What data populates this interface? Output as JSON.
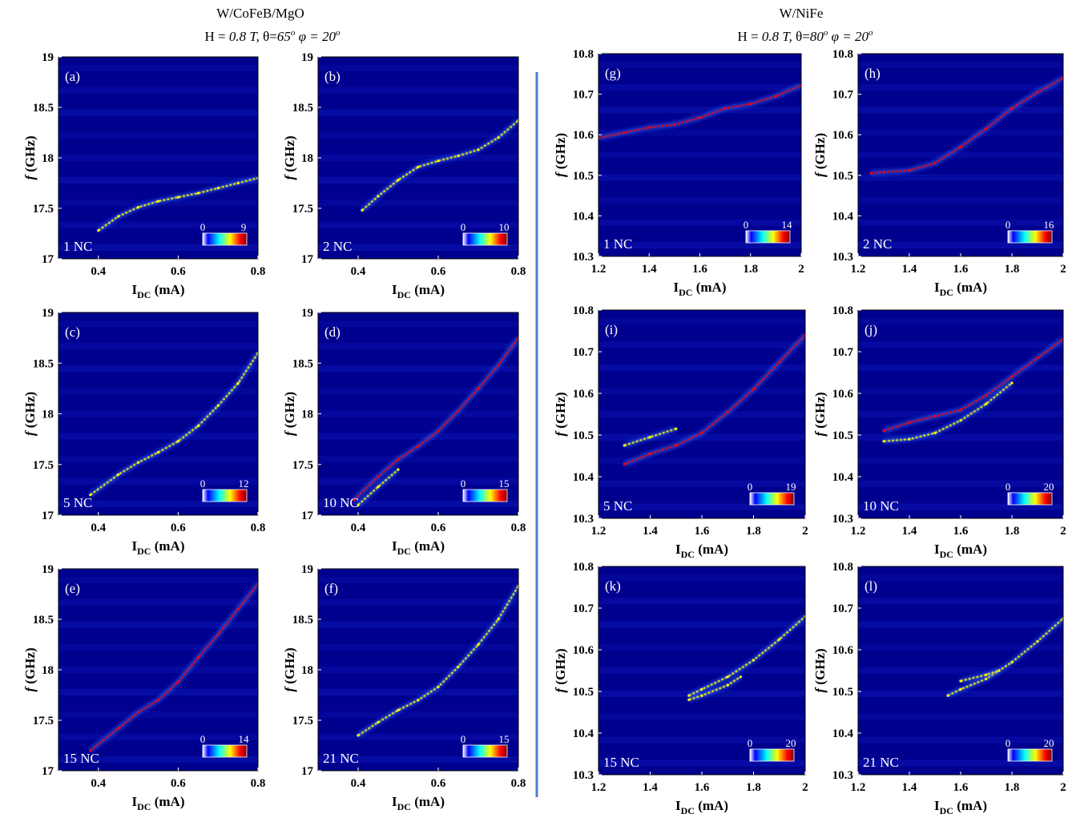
{
  "header": {
    "left_title": "W/CoFeB/MgO",
    "left_params": [
      "H = ",
      "0.8 T,",
      "  θ=",
      "65",
      "o",
      " ",
      "φ = 20",
      "o"
    ],
    "right_title": "W/NiFe",
    "right_params": [
      "H = ",
      "0.8 T,",
      " θ=",
      "80",
      "o",
      "  ",
      "φ = 20",
      "o"
    ]
  },
  "colors": {
    "background": "#00008f",
    "divider": "#4a7fd0",
    "colormap": [
      "#ffffff",
      "#0000ff",
      "#00ffff",
      "#ffff00",
      "#ff0000",
      "#800000"
    ]
  },
  "axes": {
    "xlabel_main": "I",
    "xlabel_sub": "DC",
    "xlabel_unit": " (mA)",
    "ylabel_f": "f",
    "ylabel_unit": " (GHz)"
  },
  "chart_data": [
    {
      "type": "heatmap",
      "label": "(a)",
      "sample": "W/CoFeB/MgO",
      "nc_label": "1 NC",
      "xlim": [
        0.3,
        0.8
      ],
      "ylim": [
        17,
        19
      ],
      "xticks": [
        "0.4",
        "0.6",
        "0.8"
      ],
      "yticks": [
        "17",
        "17.5",
        "18",
        "18.5",
        "19"
      ],
      "colorbar": [
        "0",
        "9"
      ],
      "series": [
        {
          "x": [
            0.4,
            0.45,
            0.5,
            0.55,
            0.6,
            0.65,
            0.7,
            0.75,
            0.8
          ],
          "y": [
            17.28,
            17.42,
            17.51,
            17.57,
            17.61,
            17.65,
            17.7,
            17.75,
            17.8
          ],
          "intensity": 0.45
        }
      ]
    },
    {
      "type": "heatmap",
      "label": "(b)",
      "sample": "W/CoFeB/MgO",
      "nc_label": "2 NC",
      "xlim": [
        0.3,
        0.8
      ],
      "ylim": [
        17,
        19
      ],
      "xticks": [
        "0.4",
        "0.6",
        "0.8"
      ],
      "yticks": [
        "17",
        "17.5",
        "18",
        "18.5",
        "19"
      ],
      "colorbar": [
        "0",
        "10"
      ],
      "series": [
        {
          "x": [
            0.41,
            0.45,
            0.5,
            0.55,
            0.6,
            0.65,
            0.7,
            0.75,
            0.8
          ],
          "y": [
            17.48,
            17.62,
            17.78,
            17.91,
            17.97,
            18.02,
            18.08,
            18.2,
            18.37
          ],
          "intensity": 0.6
        }
      ]
    },
    {
      "type": "heatmap",
      "label": "(c)",
      "sample": "W/CoFeB/MgO",
      "nc_label": "5 NC",
      "xlim": [
        0.3,
        0.8
      ],
      "ylim": [
        17,
        19
      ],
      "xticks": [
        "0.4",
        "0.6",
        "0.8"
      ],
      "yticks": [
        "17",
        "17.5",
        "18",
        "18.5",
        "19"
      ],
      "colorbar": [
        "0",
        "12"
      ],
      "series": [
        {
          "x": [
            0.38,
            0.45,
            0.5,
            0.55,
            0.6,
            0.65,
            0.7,
            0.75,
            0.8
          ],
          "y": [
            17.2,
            17.4,
            17.52,
            17.62,
            17.73,
            17.88,
            18.08,
            18.3,
            18.6
          ],
          "intensity": 0.55
        }
      ]
    },
    {
      "type": "heatmap",
      "label": "(d)",
      "sample": "W/CoFeB/MgO",
      "nc_label": "10 NC",
      "xlim": [
        0.3,
        0.8
      ],
      "ylim": [
        17,
        19
      ],
      "xticks": [
        "0.4",
        "0.6",
        "0.8"
      ],
      "yticks": [
        "17",
        "17.5",
        "18",
        "18.5",
        "19"
      ],
      "colorbar": [
        "0",
        "15"
      ],
      "series": [
        {
          "x": [
            0.39,
            0.45,
            0.5,
            0.55,
            0.6,
            0.65,
            0.7,
            0.75,
            0.8
          ],
          "y": [
            17.15,
            17.38,
            17.55,
            17.68,
            17.83,
            18.03,
            18.25,
            18.48,
            18.75
          ],
          "intensity": 0.75
        },
        {
          "x": [
            0.4,
            0.45,
            0.5
          ],
          "y": [
            17.1,
            17.28,
            17.45
          ],
          "intensity": 0.35
        }
      ]
    },
    {
      "type": "heatmap",
      "label": "(e)",
      "sample": "W/CoFeB/MgO",
      "nc_label": "15 NC",
      "xlim": [
        0.3,
        0.8
      ],
      "ylim": [
        17,
        19
      ],
      "xticks": [
        "0.4",
        "0.6",
        "0.8"
      ],
      "yticks": [
        "17",
        "17.5",
        "18",
        "18.5",
        "19"
      ],
      "colorbar": [
        "0",
        "14"
      ],
      "series": [
        {
          "x": [
            0.38,
            0.45,
            0.5,
            0.55,
            0.6,
            0.65,
            0.7,
            0.75,
            0.8
          ],
          "y": [
            17.2,
            17.42,
            17.58,
            17.7,
            17.88,
            18.12,
            18.35,
            18.6,
            18.85
          ],
          "intensity": 0.65
        }
      ]
    },
    {
      "type": "heatmap",
      "label": "(f)",
      "sample": "W/CoFeB/MgO",
      "nc_label": "21 NC",
      "xlim": [
        0.3,
        0.8
      ],
      "ylim": [
        17,
        19
      ],
      "xticks": [
        "0.4",
        "0.6",
        "0.8"
      ],
      "yticks": [
        "17",
        "17.5",
        "18",
        "18.5",
        "19"
      ],
      "colorbar": [
        "0",
        "15"
      ],
      "series": [
        {
          "x": [
            0.4,
            0.45,
            0.5,
            0.55,
            0.6,
            0.65,
            0.7,
            0.75,
            0.8
          ],
          "y": [
            17.35,
            17.48,
            17.6,
            17.7,
            17.83,
            18.03,
            18.25,
            18.5,
            18.83
          ],
          "intensity": 0.55
        }
      ]
    },
    {
      "type": "heatmap",
      "label": "(g)",
      "sample": "W/NiFe",
      "nc_label": "1 NC",
      "xlim": [
        1.2,
        2
      ],
      "ylim": [
        10.3,
        10.8
      ],
      "xticks": [
        "1.2",
        "1.4",
        "1.6",
        "1.8",
        "2"
      ],
      "yticks": [
        "10.3",
        "10.4",
        "10.5",
        "10.6",
        "10.7",
        "10.8"
      ],
      "colorbar": [
        "0",
        "14"
      ],
      "series": [
        {
          "x": [
            1.2,
            1.3,
            1.4,
            1.5,
            1.6,
            1.7,
            1.8,
            1.9,
            2.0
          ],
          "y": [
            10.592,
            10.605,
            10.618,
            10.625,
            10.642,
            10.665,
            10.676,
            10.695,
            10.722
          ],
          "intensity": 0.7
        }
      ]
    },
    {
      "type": "heatmap",
      "label": "(h)",
      "sample": "W/NiFe",
      "nc_label": "2 NC",
      "xlim": [
        1.2,
        2
      ],
      "ylim": [
        10.3,
        10.8
      ],
      "xticks": [
        "1.2",
        "1.4",
        "1.6",
        "1.8",
        "2"
      ],
      "yticks": [
        "10.3",
        "10.4",
        "10.5",
        "10.6",
        "10.7",
        "10.8"
      ],
      "colorbar": [
        "0",
        "16"
      ],
      "series": [
        {
          "x": [
            1.25,
            1.3,
            1.4,
            1.5,
            1.6,
            1.7,
            1.8,
            1.9,
            2.0
          ],
          "y": [
            10.505,
            10.508,
            10.512,
            10.53,
            10.57,
            10.615,
            10.665,
            10.705,
            10.74
          ],
          "intensity": 0.65
        }
      ]
    },
    {
      "type": "heatmap",
      "label": "(i)",
      "sample": "W/NiFe",
      "nc_label": "5 NC",
      "xlim": [
        1.2,
        2
      ],
      "ylim": [
        10.3,
        10.8
      ],
      "xticks": [
        "1.2",
        "1.4",
        "1.6",
        "1.8",
        "2"
      ],
      "yticks": [
        "10.3",
        "10.4",
        "10.5",
        "10.6",
        "10.7",
        "10.8"
      ],
      "colorbar": [
        "0",
        "19"
      ],
      "series": [
        {
          "x": [
            1.3,
            1.4,
            1.5,
            1.6,
            1.7,
            1.8,
            1.9,
            2.0
          ],
          "y": [
            10.43,
            10.455,
            10.475,
            10.505,
            10.555,
            10.61,
            10.675,
            10.74
          ],
          "intensity": 0.65
        },
        {
          "x": [
            1.3,
            1.4,
            1.5
          ],
          "y": [
            10.475,
            10.495,
            10.515
          ],
          "intensity": 0.35
        }
      ]
    },
    {
      "type": "heatmap",
      "label": "(j)",
      "sample": "W/NiFe",
      "nc_label": "10 NC",
      "xlim": [
        1.2,
        2
      ],
      "ylim": [
        10.3,
        10.8
      ],
      "xticks": [
        "1.2",
        "1.4",
        "1.6",
        "1.8",
        "2"
      ],
      "yticks": [
        "10.3",
        "10.4",
        "10.5",
        "10.6",
        "10.7",
        "10.8"
      ],
      "colorbar": [
        "0",
        "20"
      ],
      "series": [
        {
          "x": [
            1.3,
            1.4,
            1.5,
            1.6,
            1.7,
            1.8,
            1.9,
            2.0
          ],
          "y": [
            10.51,
            10.53,
            10.545,
            10.56,
            10.595,
            10.64,
            10.685,
            10.73
          ],
          "intensity": 0.7
        },
        {
          "x": [
            1.3,
            1.4,
            1.5,
            1.6,
            1.7,
            1.8
          ],
          "y": [
            10.485,
            10.49,
            10.505,
            10.535,
            10.575,
            10.625
          ],
          "intensity": 0.55
        }
      ]
    },
    {
      "type": "heatmap",
      "label": "(k)",
      "sample": "W/NiFe",
      "nc_label": "15 NC",
      "xlim": [
        1.2,
        2
      ],
      "ylim": [
        10.3,
        10.8
      ],
      "xticks": [
        "1.2",
        "1.4",
        "1.6",
        "1.8",
        "2"
      ],
      "yticks": [
        "10.3",
        "10.4",
        "10.5",
        "10.6",
        "10.7",
        "10.8"
      ],
      "colorbar": [
        "0",
        "20"
      ],
      "series": [
        {
          "x": [
            1.55,
            1.6,
            1.7,
            1.8,
            1.9,
            2.0
          ],
          "y": [
            10.49,
            10.505,
            10.535,
            10.575,
            10.625,
            10.68
          ],
          "intensity": 0.6
        },
        {
          "x": [
            1.55,
            1.6,
            1.7,
            1.75
          ],
          "y": [
            10.48,
            10.49,
            10.515,
            10.535
          ],
          "intensity": 0.35
        }
      ]
    },
    {
      "type": "heatmap",
      "label": "(l)",
      "sample": "W/NiFe",
      "nc_label": "21 NC",
      "xlim": [
        1.2,
        2
      ],
      "ylim": [
        10.3,
        10.8
      ],
      "xticks": [
        "1.2",
        "1.4",
        "1.6",
        "1.8",
        "2"
      ],
      "yticks": [
        "10.3",
        "10.4",
        "10.5",
        "10.6",
        "10.7",
        "10.8"
      ],
      "colorbar": [
        "0",
        "20"
      ],
      "series": [
        {
          "x": [
            1.55,
            1.6,
            1.7,
            1.8,
            1.9,
            2.0
          ],
          "y": [
            10.49,
            10.505,
            10.53,
            10.57,
            10.62,
            10.675
          ],
          "intensity": 0.6
        },
        {
          "x": [
            1.6,
            1.7,
            1.75
          ],
          "y": [
            10.525,
            10.54,
            10.55
          ],
          "intensity": 0.4
        }
      ]
    }
  ]
}
